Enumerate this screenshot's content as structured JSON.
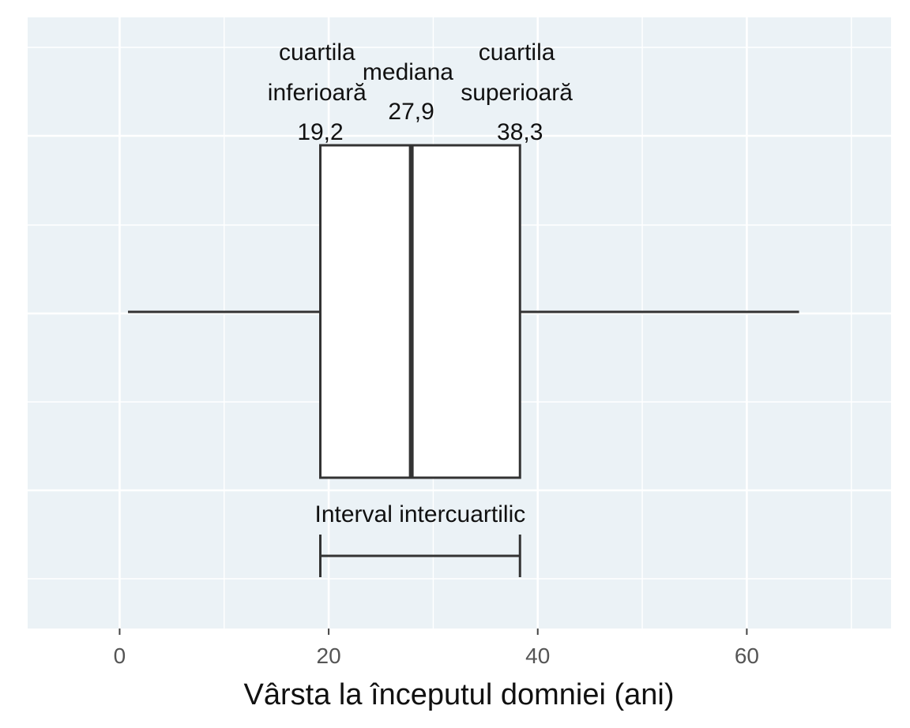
{
  "chart_data": {
    "type": "boxplot",
    "xlabel": "Vârsta la începutul domniei (ani)",
    "xlim": [
      -8.8,
      73.8
    ],
    "xticks": [
      0,
      20,
      40,
      60
    ],
    "grid": true,
    "legend": "none",
    "colors": {
      "panel": "#ebf2f6",
      "grid": "#ffffff",
      "box_fill": "#ffffff",
      "stroke": "#333333"
    },
    "box": {
      "whisker_low": 0.8,
      "q1": 19.2,
      "median": 27.9,
      "q3": 38.3,
      "whisker_high": 65
    },
    "annotations": {
      "q1_label": [
        "cuartila",
        "inferioară",
        "19,2"
      ],
      "median_label": [
        "mediana",
        "27,9"
      ],
      "q3_label": [
        "cuartila",
        "superioară",
        "38,3"
      ],
      "iqr_label": "Interval intercuartilic"
    }
  }
}
